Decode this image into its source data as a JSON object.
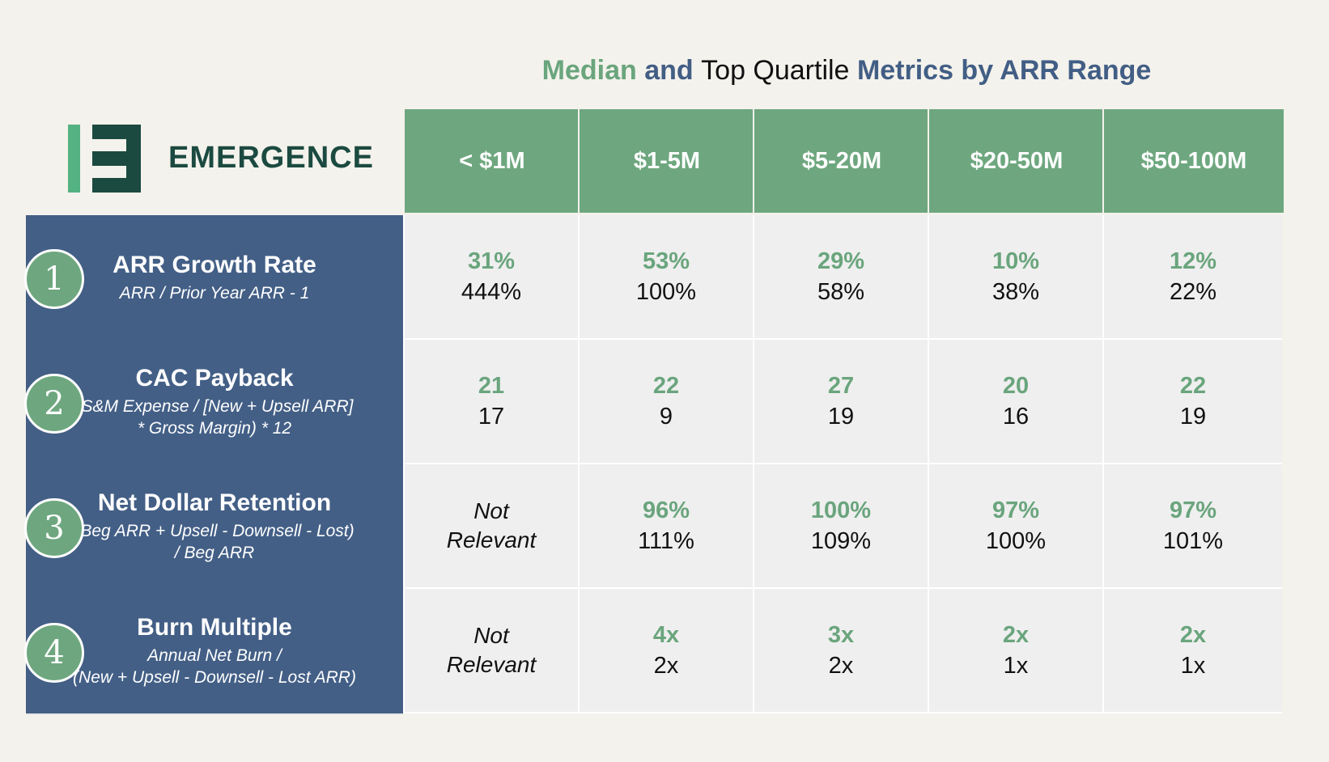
{
  "title": {
    "part1": "Median",
    "part2": "and",
    "part3": "Top Quartile",
    "part4": "Metrics by ARR Range"
  },
  "brand": {
    "name": "EMERGENCE"
  },
  "columns": [
    "< $1M",
    "$1-5M",
    "$5-20M",
    "$20-50M",
    "$50-100M"
  ],
  "rows": [
    {
      "number": "1",
      "name": "ARR Growth Rate",
      "sub1": "ARR / Prior Year ARR - 1",
      "sub2": "",
      "cells": [
        {
          "top": "31%",
          "q": "444%"
        },
        {
          "top": "53%",
          "q": "100%"
        },
        {
          "top": "29%",
          "q": "58%"
        },
        {
          "top": "10%",
          "q": "38%"
        },
        {
          "top": "12%",
          "q": "22%"
        }
      ]
    },
    {
      "number": "2",
      "name": "CAC Payback",
      "sub1": "(S&M Expense / [New + Upsell ARR]",
      "sub2": "* Gross Margin) * 12",
      "cells": [
        {
          "top": "21",
          "q": "17"
        },
        {
          "top": "22",
          "q": "9"
        },
        {
          "top": "27",
          "q": "19"
        },
        {
          "top": "20",
          "q": "16"
        },
        {
          "top": "22",
          "q": "19"
        }
      ]
    },
    {
      "number": "3",
      "name": "Net Dollar Retention",
      "sub1": "(Beg ARR + Upsell - Downsell - Lost)",
      "sub2": "/ Beg ARR",
      "cells": [
        {
          "nr1": "Not",
          "nr2": "Relevant"
        },
        {
          "top": "96%",
          "q": "111%"
        },
        {
          "top": "100%",
          "q": "109%"
        },
        {
          "top": "97%",
          "q": "100%"
        },
        {
          "top": "97%",
          "q": "101%"
        }
      ]
    },
    {
      "number": "4",
      "name": "Burn Multiple",
      "sub1": "Annual Net Burn /",
      "sub2": "(New + Upsell - Downsell - Lost ARR)",
      "cells": [
        {
          "nr1": "Not",
          "nr2": "Relevant"
        },
        {
          "top": "4x",
          "q": "2x"
        },
        {
          "top": "3x",
          "q": "2x"
        },
        {
          "top": "2x",
          "q": "1x"
        },
        {
          "top": "2x",
          "q": "1x"
        }
      ]
    }
  ]
}
